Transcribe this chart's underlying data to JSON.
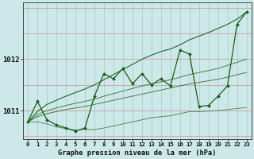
{
  "title": "Graphe pression niveau de la mer (hPa)",
  "background_color": "#cce8e8",
  "grid_color_h": "#d09090",
  "grid_color_v": "#a8c8c8",
  "line_color": "#1a5c1a",
  "x_labels": [
    "0",
    "1",
    "2",
    "3",
    "4",
    "5",
    "6",
    "7",
    "8",
    "9",
    "10",
    "11",
    "12",
    "13",
    "14",
    "15",
    "16",
    "17",
    "18",
    "19",
    "20",
    "21",
    "22",
    "23"
  ],
  "yticks": [
    1011,
    1012
  ],
  "ylim": [
    1010.45,
    1013.1
  ],
  "xlim": [
    -0.5,
    23.5
  ],
  "series": {
    "main": [
      1010.78,
      1011.18,
      1010.82,
      1010.72,
      1010.66,
      1010.6,
      1010.66,
      1011.28,
      1011.72,
      1011.62,
      1011.82,
      1011.52,
      1011.72,
      1011.5,
      1011.62,
      1011.48,
      1012.18,
      1012.1,
      1011.08,
      1011.1,
      1011.28,
      1011.48,
      1012.68,
      1012.92
    ],
    "min": [
      1010.78,
      1010.78,
      1010.74,
      1010.68,
      1010.65,
      1010.62,
      1010.63,
      1010.63,
      1010.66,
      1010.7,
      1010.74,
      1010.78,
      1010.82,
      1010.86,
      1010.88,
      1010.9,
      1010.94,
      1010.98,
      1010.98,
      1010.99,
      1011.0,
      1011.02,
      1011.04,
      1011.06
    ],
    "max": [
      1010.78,
      1011.18,
      1010.95,
      1010.8,
      1010.7,
      1010.65,
      1010.7,
      1011.28,
      1011.72,
      1011.65,
      1011.85,
      1011.6,
      1011.8,
      1011.6,
      1011.7,
      1011.58,
      1012.22,
      1012.15,
      1011.18,
      1011.18,
      1011.32,
      1011.58,
      1012.72,
      1012.95
    ],
    "trend": [
      1010.78,
      1010.92,
      1011.0,
      1011.05,
      1011.1,
      1011.14,
      1011.18,
      1011.22,
      1011.28,
      1011.33,
      1011.38,
      1011.43,
      1011.48,
      1011.52,
      1011.56,
      1011.6,
      1011.65,
      1011.7,
      1011.74,
      1011.78,
      1011.82,
      1011.88,
      1011.94,
      1012.0
    ],
    "trend2": [
      1010.78,
      1010.88,
      1010.94,
      1010.98,
      1011.02,
      1011.05,
      1011.08,
      1011.12,
      1011.16,
      1011.2,
      1011.24,
      1011.28,
      1011.32,
      1011.36,
      1011.4,
      1011.44,
      1011.48,
      1011.52,
      1011.55,
      1011.58,
      1011.61,
      1011.65,
      1011.7,
      1011.74
    ],
    "linear": [
      1010.78,
      1010.98,
      1011.12,
      1011.2,
      1011.28,
      1011.35,
      1011.42,
      1011.5,
      1011.6,
      1011.7,
      1011.8,
      1011.9,
      1012.0,
      1012.08,
      1012.15,
      1012.2,
      1012.28,
      1012.38,
      1012.45,
      1012.52,
      1012.6,
      1012.68,
      1012.78,
      1012.92
    ]
  }
}
